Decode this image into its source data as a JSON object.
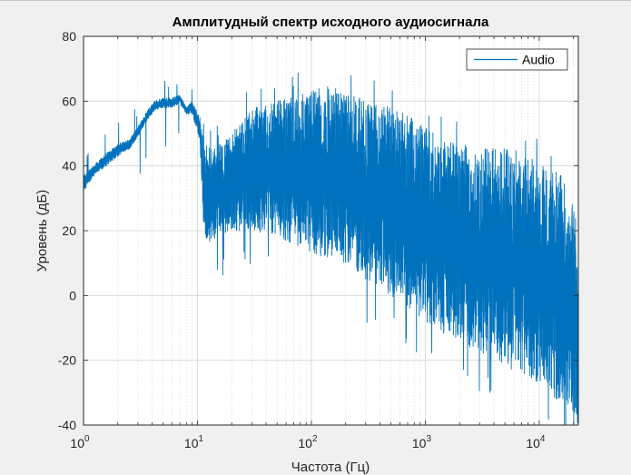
{
  "chart_data": {
    "type": "line",
    "title": "Амплитудный спектр исходного аудиосигнала",
    "xlabel": "Частота (Гц)",
    "ylabel": "Уровень (дБ)",
    "x_scale": "log",
    "xlim": [
      1,
      22050
    ],
    "ylim": [
      -40,
      80
    ],
    "x_ticks": [
      1,
      10,
      100,
      1000,
      10000
    ],
    "x_tick_labels": [
      {
        "base": "10",
        "exp": "0"
      },
      {
        "base": "10",
        "exp": "1"
      },
      {
        "base": "10",
        "exp": "2"
      },
      {
        "base": "10",
        "exp": "3"
      },
      {
        "base": "10",
        "exp": "4"
      }
    ],
    "y_ticks": [
      -40,
      -20,
      0,
      20,
      40,
      60,
      80
    ],
    "y_tick_labels": [
      "-40",
      "-20",
      "0",
      "20",
      "40",
      "60",
      "80"
    ],
    "grid": true,
    "minor_grid": true,
    "legend_position": "top-right",
    "series": [
      {
        "name": "Audio",
        "color": "#0072bd",
        "envelope": [
          {
            "x": 1.0,
            "upper": 37,
            "lower": 32
          },
          {
            "x": 1.3,
            "upper": 41,
            "lower": 38
          },
          {
            "x": 1.6,
            "upper": 44,
            "lower": 40
          },
          {
            "x": 2.0,
            "upper": 47,
            "lower": 43
          },
          {
            "x": 2.5,
            "upper": 48,
            "lower": 45
          },
          {
            "x": 3.0,
            "upper": 52,
            "lower": 49
          },
          {
            "x": 3.6,
            "upper": 57,
            "lower": 54
          },
          {
            "x": 4.2,
            "upper": 60,
            "lower": 57
          },
          {
            "x": 5.0,
            "upper": 61,
            "lower": 58
          },
          {
            "x": 6.0,
            "upper": 61,
            "lower": 58
          },
          {
            "x": 7.0,
            "upper": 62,
            "lower": 59
          },
          {
            "x": 8.0,
            "upper": 58,
            "lower": 56
          },
          {
            "x": 9.0,
            "upper": 60,
            "lower": 56
          },
          {
            "x": 10.5,
            "upper": 55,
            "lower": 48
          },
          {
            "x": 11.5,
            "upper": 48,
            "lower": 15
          },
          {
            "x": 15,
            "upper": 46,
            "lower": 18
          },
          {
            "x": 20,
            "upper": 50,
            "lower": 20
          },
          {
            "x": 30,
            "upper": 58,
            "lower": 20
          },
          {
            "x": 50,
            "upper": 60,
            "lower": 18
          },
          {
            "x": 80,
            "upper": 62,
            "lower": 15
          },
          {
            "x": 120,
            "upper": 65,
            "lower": 12
          },
          {
            "x": 200,
            "upper": 64,
            "lower": 10
          },
          {
            "x": 300,
            "upper": 60,
            "lower": 5
          },
          {
            "x": 500,
            "upper": 58,
            "lower": 0
          },
          {
            "x": 800,
            "upper": 55,
            "lower": -5
          },
          {
            "x": 1000,
            "upper": 52,
            "lower": -8
          },
          {
            "x": 1500,
            "upper": 48,
            "lower": -12
          },
          {
            "x": 2000,
            "upper": 47,
            "lower": -15
          },
          {
            "x": 3000,
            "upper": 46,
            "lower": -18
          },
          {
            "x": 5000,
            "upper": 46,
            "lower": -22
          },
          {
            "x": 8000,
            "upper": 44,
            "lower": -25
          },
          {
            "x": 10000,
            "upper": 42,
            "lower": -28
          },
          {
            "x": 12000,
            "upper": 40,
            "lower": -30
          },
          {
            "x": 15000,
            "upper": 38,
            "lower": -33
          },
          {
            "x": 18000,
            "upper": 33,
            "lower": -36
          },
          {
            "x": 20000,
            "upper": 28,
            "lower": -40
          },
          {
            "x": 22050,
            "upper": 5,
            "lower": -40
          }
        ]
      }
    ]
  }
}
